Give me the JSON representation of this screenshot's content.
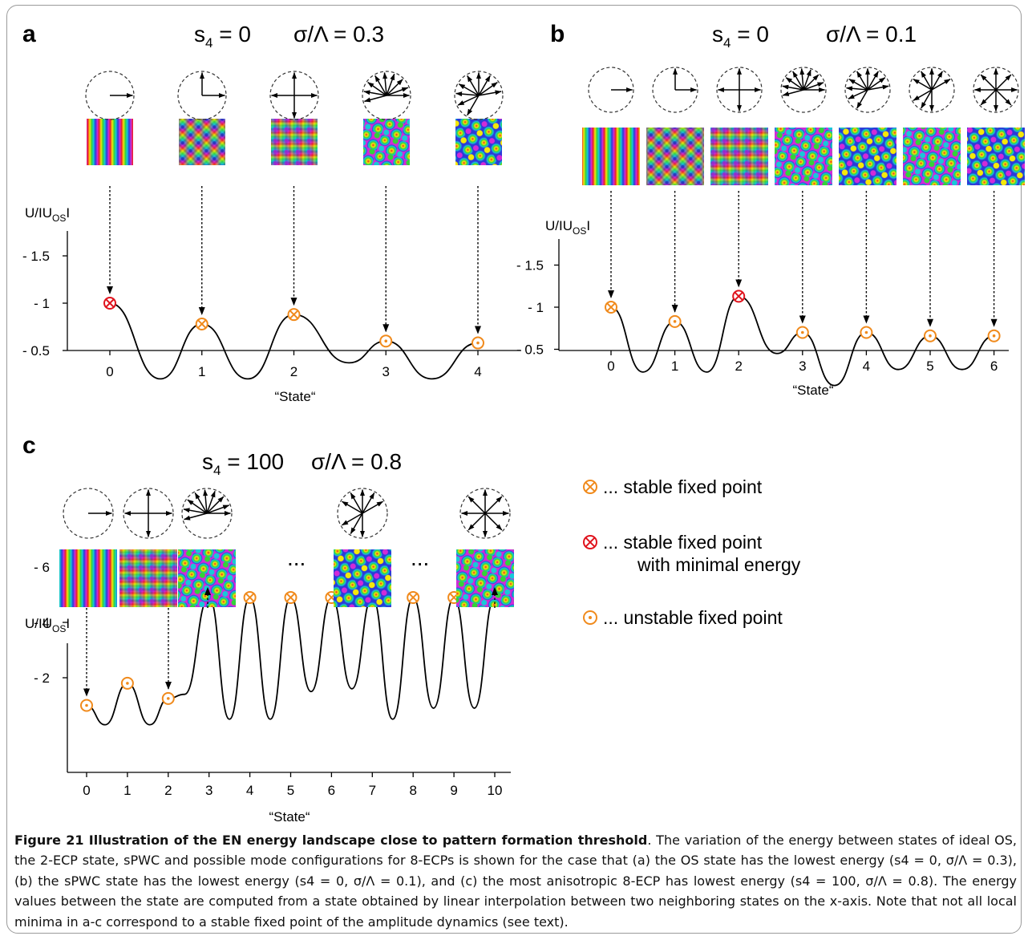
{
  "panels": [
    {
      "id": "a",
      "letter": "a",
      "s4_label": "s",
      "s4_sub": "4",
      "s4_value": " = 0",
      "sigma_label": "σ/Λ = 0.3",
      "ylabel_main": "U/IU",
      "ylabel_sub": "OS",
      "ylabel_end": "I",
      "xlabel": "“State“",
      "states_drawn": [
        0,
        1,
        2,
        3,
        4
      ],
      "icons": [
        "1 wave",
        "2 orthogonal",
        "4 cross",
        "fan 8",
        "fan 8 rotated"
      ]
    },
    {
      "id": "b",
      "letter": "b",
      "s4_label": "s",
      "s4_sub": "4",
      "s4_value": " = 0",
      "sigma_label": "σ/Λ = 0.1",
      "ylabel_main": "U/IU",
      "ylabel_sub": "OS",
      "ylabel_end": "I",
      "xlabel": "“State“",
      "states_drawn": [
        0,
        1,
        2,
        3,
        4,
        5,
        6
      ],
      "icons": [
        "1 wave",
        "2 orthogonal",
        "4 cross",
        "fan",
        "fan",
        "fan",
        "fan"
      ]
    },
    {
      "id": "c",
      "letter": "c",
      "s4_label": "s",
      "s4_sub": "4",
      "s4_value": " = 100",
      "sigma_label": "σ/Λ = 0.8",
      "ylabel_main": "U/IU",
      "ylabel_sub": "OS",
      "ylabel_end": "I",
      "xlabel": "“State“",
      "ellipsis": "...",
      "icons": [
        "1 wave",
        "4 cross",
        "fan",
        "star",
        "star"
      ]
    }
  ],
  "legend": {
    "stable": "... stable fixed point",
    "stable_min_line1": "... stable fixed point",
    "stable_min_line2": "with minimal energy",
    "unstable": "... unstable fixed point"
  },
  "colors": {
    "stable": "#f08a1c",
    "minimal": "#e0141e",
    "unstable": "#f08a1c",
    "curve": "#000000"
  },
  "chart_data": [
    {
      "type": "line",
      "title": "s4 = 0   σ/Λ = 0.3",
      "xlabel": "“State“",
      "ylabel": "U/|U_OS|",
      "xticks": [
        0,
        1,
        2,
        3,
        4
      ],
      "yticks": [
        "- 0.5",
        "- 1",
        "- 1.5"
      ],
      "ytick_values": [
        -0.5,
        -1,
        -1.5
      ],
      "ylim": [
        -1.5,
        -0.18
      ],
      "xlim": [
        -0.45,
        4.3
      ],
      "curve_points": [
        [
          0,
          -1.0
        ],
        [
          0.55,
          -0.2
        ],
        [
          1,
          -0.78
        ],
        [
          1.5,
          -0.2
        ],
        [
          2,
          -0.88
        ],
        [
          2.6,
          -0.37
        ],
        [
          3,
          -0.6
        ],
        [
          3.5,
          -0.2
        ],
        [
          4,
          -0.58
        ]
      ],
      "fixed_points": [
        {
          "x": 0,
          "y": -1.0,
          "kind": "minimal"
        },
        {
          "x": 1,
          "y": -0.78,
          "kind": "stable"
        },
        {
          "x": 2,
          "y": -0.88,
          "kind": "stable"
        },
        {
          "x": 3,
          "y": -0.6,
          "kind": "unstable"
        },
        {
          "x": 4,
          "y": -0.58,
          "kind": "unstable"
        }
      ]
    },
    {
      "type": "line",
      "title": "s4 = 0   σ/Λ = 0.1",
      "xlabel": "“State“",
      "ylabel": "U/|U_OS|",
      "xticks": [
        0,
        1,
        2,
        3,
        4,
        5,
        6
      ],
      "yticks": [
        "- 0.5",
        "- 1",
        "- 1.5"
      ],
      "ytick_values": [
        -0.5,
        -1,
        -1.5
      ],
      "ylim": [
        -1.5,
        -0.07
      ],
      "xlim": [
        -0.45,
        6.3
      ],
      "curve_points": [
        [
          0,
          -1.0
        ],
        [
          0.5,
          -0.23
        ],
        [
          1,
          -0.83
        ],
        [
          1.5,
          -0.23
        ],
        [
          2,
          -1.13
        ],
        [
          2.6,
          -0.45
        ],
        [
          3,
          -0.7
        ],
        [
          3.5,
          -0.07
        ],
        [
          4,
          -0.7
        ],
        [
          4.5,
          -0.26
        ],
        [
          5,
          -0.66
        ],
        [
          5.5,
          -0.26
        ],
        [
          6,
          -0.66
        ]
      ],
      "fixed_points": [
        {
          "x": 0,
          "y": -1.0,
          "kind": "stable"
        },
        {
          "x": 1,
          "y": -0.83,
          "kind": "unstable"
        },
        {
          "x": 2,
          "y": -1.13,
          "kind": "minimal"
        },
        {
          "x": 3,
          "y": -0.7,
          "kind": "unstable"
        },
        {
          "x": 4,
          "y": -0.7,
          "kind": "unstable"
        },
        {
          "x": 5,
          "y": -0.66,
          "kind": "unstable"
        },
        {
          "x": 6,
          "y": -0.66,
          "kind": "unstable"
        }
      ]
    },
    {
      "type": "line",
      "title": "s4 = 100   σ/Λ = 0.8",
      "xlabel": "“State“",
      "ylabel": "U/|U_OS|",
      "xticks": [
        0,
        1,
        2,
        3,
        4,
        5,
        6,
        7,
        8,
        9,
        10
      ],
      "yticks": [
        "- 2",
        "- 4",
        "- 6"
      ],
      "ytick_values": [
        -2,
        -4,
        -6
      ],
      "ylim": [
        -7,
        -0.3
      ],
      "xlim": [
        -0.3,
        10.3
      ],
      "curve_points": [
        [
          0,
          -1.0
        ],
        [
          0.45,
          -0.3
        ],
        [
          1,
          -1.8
        ],
        [
          1.55,
          -0.3
        ],
        [
          2,
          -1.25
        ],
        [
          2.4,
          -1.4
        ],
        [
          3,
          -4.9
        ],
        [
          3.5,
          -0.5
        ],
        [
          4,
          -4.9
        ],
        [
          4.5,
          -0.5
        ],
        [
          5,
          -4.9
        ],
        [
          5.5,
          -1.5
        ],
        [
          6,
          -4.9
        ],
        [
          6.5,
          -1.6
        ],
        [
          7,
          -4.9
        ],
        [
          7.5,
          -0.5
        ],
        [
          8,
          -4.9
        ],
        [
          8.5,
          -0.9
        ],
        [
          9,
          -4.9
        ],
        [
          9.5,
          -0.9
        ],
        [
          10,
          -4.9
        ]
      ],
      "fixed_points": [
        {
          "x": 0,
          "y": -1.0,
          "kind": "unstable"
        },
        {
          "x": 1,
          "y": -1.8,
          "kind": "unstable"
        },
        {
          "x": 2,
          "y": -1.25,
          "kind": "unstable"
        },
        {
          "x": 3,
          "y": -4.9,
          "kind": "minimal"
        },
        {
          "x": 4,
          "y": -4.9,
          "kind": "stable"
        },
        {
          "x": 5,
          "y": -4.9,
          "kind": "stable"
        },
        {
          "x": 6,
          "y": -4.9,
          "kind": "stable"
        },
        {
          "x": 7,
          "y": -4.9,
          "kind": "stable"
        },
        {
          "x": 8,
          "y": -4.9,
          "kind": "stable"
        },
        {
          "x": 9,
          "y": -4.9,
          "kind": "stable"
        },
        {
          "x": 10,
          "y": -4.9,
          "kind": "stable"
        }
      ]
    }
  ],
  "caption": {
    "title": "Figure 21 Illustration of the EN energy landscape close to pattern formation threshold",
    "body": ". The variation of the energy between states of ideal OS, the 2-ECP state, sPWC and possible mode configurations for 8-ECPs is shown for the case that (a) the OS state has the lowest energy (s4 = 0, σ/Λ = 0.3), (b) the sPWC state has the lowest energy (s4 = 0, σ/Λ = 0.1), and (c) the most anisotropic 8-ECP has lowest energy (s4 = 100, σ/Λ = 0.8). The energy values between the state are computed from a state obtained by linear interpolation between two neighboring states on the x-axis. Note that not all local minima in a-c correspond to a stable fixed point of the amplitude dynamics (see text)."
  }
}
